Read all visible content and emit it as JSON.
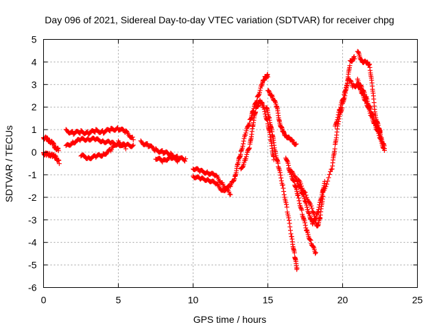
{
  "chart_data": {
    "type": "scatter",
    "title": "Day 096 of 2021, Sidereal Day-to-day VTEC variation (SDTVAR) for receiver chpg",
    "xlabel": "GPS time / hours",
    "ylabel": "SDTVAR / TECUs",
    "xlim": [
      0,
      25
    ],
    "ylim": [
      -6,
      5
    ],
    "xticks": [
      "0",
      "5",
      "10",
      "15",
      "20",
      "25"
    ],
    "yticks": [
      "5",
      "4",
      "3",
      "2",
      "1",
      "0",
      "-1",
      "-2",
      "-3",
      "-4",
      "-5",
      "-6"
    ],
    "grid": true,
    "marker": "+",
    "series": [
      {
        "color": "#ff0000",
        "points": [
          [
            0.0,
            0.65
          ],
          [
            0.2,
            0.6
          ],
          [
            0.4,
            0.5
          ],
          [
            0.6,
            0.4
          ],
          [
            0.8,
            0.2
          ],
          [
            1.0,
            0.1
          ],
          [
            0.0,
            -0.05
          ],
          [
            0.2,
            -0.1
          ],
          [
            0.4,
            -0.1
          ],
          [
            0.6,
            -0.15
          ],
          [
            0.8,
            -0.2
          ],
          [
            1.05,
            -0.45
          ],
          [
            1.5,
            0.95
          ],
          [
            2.0,
            0.85
          ],
          [
            2.5,
            0.9
          ],
          [
            3.0,
            0.85
          ],
          [
            3.5,
            0.95
          ],
          [
            4.0,
            0.9
          ],
          [
            4.5,
            1.0
          ],
          [
            5.0,
            1.05
          ],
          [
            5.5,
            0.9
          ],
          [
            6.0,
            0.6
          ],
          [
            1.5,
            0.25
          ],
          [
            2.0,
            0.45
          ],
          [
            2.5,
            0.55
          ],
          [
            3.0,
            0.6
          ],
          [
            3.5,
            0.55
          ],
          [
            4.0,
            0.5
          ],
          [
            4.5,
            0.4
          ],
          [
            5.0,
            0.35
          ],
          [
            5.5,
            0.3
          ],
          [
            6.0,
            0.3
          ],
          [
            2.5,
            -0.15
          ],
          [
            3.0,
            -0.25
          ],
          [
            3.5,
            -0.2
          ],
          [
            4.0,
            -0.1
          ],
          [
            4.5,
            0.1
          ],
          [
            5.0,
            0.45
          ],
          [
            5.5,
            0.2
          ],
          [
            6.5,
            0.45
          ],
          [
            7.0,
            0.3
          ],
          [
            7.5,
            0.1
          ],
          [
            8.0,
            0.0
          ],
          [
            8.5,
            -0.1
          ],
          [
            9.0,
            -0.25
          ],
          [
            9.5,
            -0.35
          ],
          [
            7.5,
            -0.25
          ],
          [
            8.0,
            -0.4
          ],
          [
            8.5,
            -0.2
          ],
          [
            9.0,
            -0.4
          ],
          [
            10.0,
            -0.7
          ],
          [
            10.5,
            -0.85
          ],
          [
            11.0,
            -0.9
          ],
          [
            11.5,
            -1.05
          ],
          [
            12.0,
            -1.4
          ],
          [
            12.5,
            -1.9
          ],
          [
            10.0,
            -1.05
          ],
          [
            10.5,
            -1.2
          ],
          [
            11.0,
            -1.2
          ],
          [
            11.5,
            -1.4
          ],
          [
            12.0,
            -1.7
          ],
          [
            12.5,
            -1.5
          ],
          [
            12.8,
            -1.1
          ],
          [
            13.0,
            -0.5
          ],
          [
            13.2,
            0.0
          ],
          [
            13.5,
            0.8
          ],
          [
            13.8,
            1.4
          ],
          [
            14.0,
            1.8
          ],
          [
            14.3,
            2.4
          ],
          [
            14.6,
            3.0
          ],
          [
            14.8,
            3.3
          ],
          [
            15.0,
            3.4
          ],
          [
            13.2,
            -0.8
          ],
          [
            13.5,
            -0.3
          ],
          [
            13.8,
            0.3
          ],
          [
            14.0,
            1.2
          ],
          [
            14.2,
            1.9
          ],
          [
            14.5,
            2.3
          ],
          [
            14.7,
            2.0
          ],
          [
            15.0,
            1.3
          ],
          [
            15.2,
            0.5
          ],
          [
            15.4,
            -0.3
          ],
          [
            15.0,
            2.7
          ],
          [
            15.3,
            2.5
          ],
          [
            15.6,
            2.0
          ],
          [
            15.8,
            1.3
          ],
          [
            16.0,
            0.9
          ],
          [
            16.2,
            0.75
          ],
          [
            16.5,
            0.55
          ],
          [
            16.9,
            0.35
          ],
          [
            14.9,
            2.0
          ],
          [
            15.1,
            1.5
          ],
          [
            15.3,
            0.8
          ],
          [
            15.5,
            0.0
          ],
          [
            15.7,
            -0.6
          ],
          [
            16.0,
            -1.5
          ],
          [
            16.3,
            -2.6
          ],
          [
            16.6,
            -3.8
          ],
          [
            16.8,
            -4.6
          ],
          [
            16.95,
            -5.2
          ],
          [
            16.2,
            -0.2
          ],
          [
            16.5,
            -0.9
          ],
          [
            16.8,
            -1.4
          ],
          [
            17.0,
            -1.9
          ],
          [
            17.3,
            -2.7
          ],
          [
            17.6,
            -3.5
          ],
          [
            17.9,
            -4.0
          ],
          [
            18.2,
            -4.5
          ],
          [
            16.4,
            -0.7
          ],
          [
            16.8,
            -1.1
          ],
          [
            17.2,
            -1.6
          ],
          [
            17.5,
            -2.2
          ],
          [
            17.8,
            -2.8
          ],
          [
            18.0,
            -3.2
          ],
          [
            18.3,
            -2.7
          ],
          [
            18.6,
            -2.0
          ],
          [
            18.8,
            -1.3
          ],
          [
            17.0,
            -1.2
          ],
          [
            17.5,
            -1.8
          ],
          [
            18.0,
            -2.6
          ],
          [
            18.3,
            -3.3
          ],
          [
            18.5,
            -2.9
          ],
          [
            18.7,
            -1.8
          ],
          [
            19.3,
            -0.7
          ],
          [
            19.5,
            0.3
          ],
          [
            19.7,
            1.3
          ],
          [
            20.0,
            2.1
          ],
          [
            20.3,
            3.0
          ],
          [
            20.5,
            4.0
          ],
          [
            20.8,
            4.2
          ],
          [
            19.5,
            1.1
          ],
          [
            19.8,
            1.9
          ],
          [
            20.1,
            2.5
          ],
          [
            20.4,
            3.3
          ],
          [
            20.7,
            2.9
          ],
          [
            21.0,
            3.0
          ],
          [
            21.3,
            2.6
          ],
          [
            21.6,
            2.2
          ],
          [
            21.9,
            1.6
          ],
          [
            22.2,
            1.2
          ],
          [
            22.5,
            0.6
          ],
          [
            22.8,
            0.1
          ],
          [
            21.0,
            4.45
          ],
          [
            21.3,
            4.05
          ],
          [
            21.6,
            3.95
          ],
          [
            21.8,
            3.9
          ],
          [
            22.0,
            2.8
          ],
          [
            22.2,
            1.6
          ],
          [
            22.4,
            1.1
          ],
          [
            22.6,
            0.6
          ],
          [
            22.8,
            0.2
          ],
          [
            21.0,
            3.2
          ],
          [
            21.3,
            2.8
          ],
          [
            21.6,
            2.4
          ],
          [
            21.9,
            1.8
          ],
          [
            22.2,
            1.3
          ],
          [
            22.5,
            0.9
          ]
        ]
      }
    ]
  }
}
